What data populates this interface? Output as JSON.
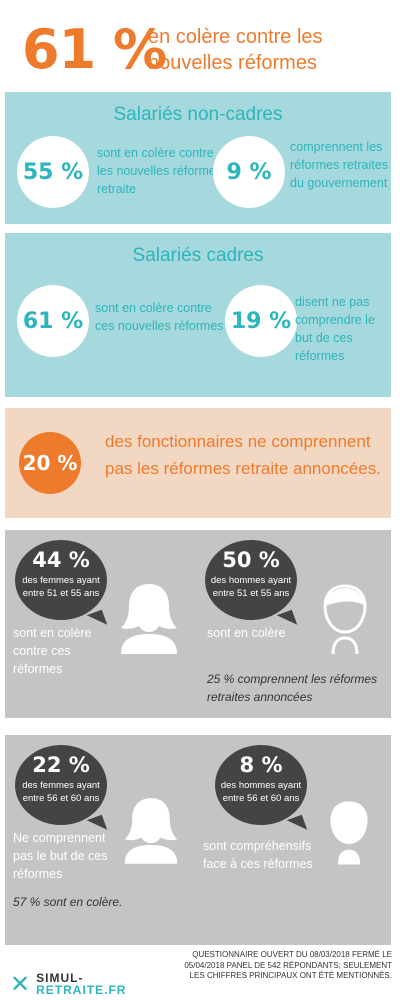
{
  "header": {
    "percent": "61 %",
    "text": "en colère contre les nouvelles réformes"
  },
  "non_cadres": {
    "title": "Salariés non-cadres",
    "stat1": {
      "value": "55 %",
      "text": "sont en colère contre les nouvelles réformes retraite"
    },
    "stat2": {
      "value": "9 %",
      "text": "comprennent les réformes retraites du gouvernement"
    }
  },
  "cadres": {
    "title": "Salariés cadres",
    "stat1": {
      "value": "61 %",
      "text": "sont en colère contre ces nouvelles réformes"
    },
    "stat2": {
      "value": "19 %",
      "text": "disent ne pas comprendre le but de ces réformes"
    }
  },
  "fonctionnaires": {
    "value": "20 %",
    "text": "des fonctionnaires ne comprennent pas les réformes retraite annoncées."
  },
  "age_51_55": {
    "women": {
      "value": "44 %",
      "sub": "des femmes ayant entre 51 et 55 ans",
      "text": "sont en colère contre ces réformes"
    },
    "men": {
      "value": "50 %",
      "sub": "des hommes ayant entre 51 et 55 ans",
      "text": "sont en colère",
      "note": "25 % comprennent les réformes retraites annoncées"
    }
  },
  "age_56_60": {
    "women": {
      "value": "22 %",
      "sub": "des femmes ayant entre 56 et 60 ans",
      "text": "Ne comprennent pas le but de ces réformes",
      "note": "57 % sont en colère."
    },
    "men": {
      "value": "8 %",
      "sub": "des hommes ayant entre 56 et 60 ans",
      "text": "sont compréhensifs face à ces réformes"
    }
  },
  "footer": {
    "logo_line1": "SIMUL-",
    "logo_line2": "RETRAITE.FR",
    "note": "Questionnaire ouvert du 08/03/2018 fermé le 05/04/2018 Panel de 542 répondants; seulement les chiffres principaux ont été mentionnés."
  },
  "colors": {
    "orange": "#ee7a2c",
    "teal": "#2cb5bb",
    "teal_bg": "#a6d9dd",
    "peach_bg": "#f2d8c3",
    "grey_bg": "#c4c4c4",
    "bubble": "#444444"
  },
  "icons": [
    "woman-avatar-icon",
    "man-avatar-icon",
    "close-x-logo-icon"
  ]
}
